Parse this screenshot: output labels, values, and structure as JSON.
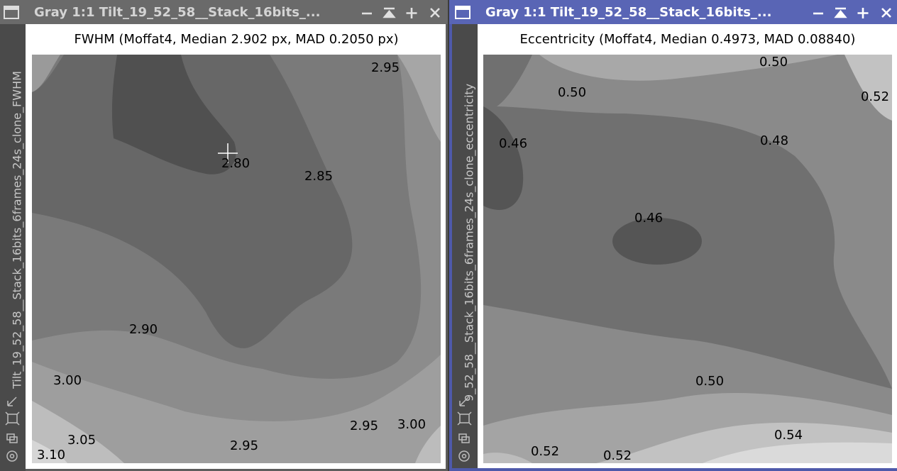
{
  "windows": [
    {
      "title": "Gray 1:1 Tilt_19_52_58__Stack_16bits_...",
      "side_label": "Tilt_19_52_58__Stack_16bits_6frames_24s_clone_FWHM",
      "plot_title": "FWHM (Moffat4, Median 2.902 px, MAD 0.2050 px)",
      "contour_labels": [
        "2.95",
        "2.80",
        "2.85",
        "2.90",
        "3.00",
        "3.05",
        "3.10",
        "2.95",
        "2.95",
        "3.00"
      ]
    },
    {
      "title": "Gray 1:1 Tilt_19_52_58__Stack_16bits_...",
      "side_label": "9_52_58__Stack_16bits_6frames_24s_clone_eccentricity",
      "plot_title": "Eccentricity (Moffat4, Median 0.4973, MAD 0.08840)",
      "contour_labels": [
        "0.50",
        "0.50",
        "0.52",
        "0.46",
        "0.48",
        "0.46",
        "0.50",
        "0.54",
        "0.52",
        "0.52"
      ]
    }
  ]
}
